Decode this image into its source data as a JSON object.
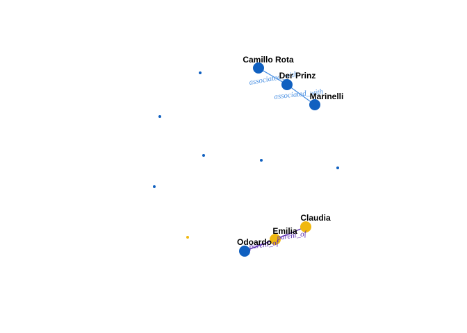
{
  "graph": {
    "colors": {
      "blue": "#1060c0",
      "yellow": "#f0b810",
      "edge_blue": "#4a90e2",
      "edge_purple": "#5a2cb0"
    },
    "nodes": [
      {
        "id": "camillo",
        "label": "Camillo Rota",
        "color": "blue",
        "size": "large"
      },
      {
        "id": "prinz",
        "label": "Der Prinz",
        "color": "blue",
        "size": "large"
      },
      {
        "id": "marinelli",
        "label": "Marinelli",
        "color": "blue",
        "size": "large"
      },
      {
        "id": "claudia",
        "label": "Claudia",
        "color": "yellow",
        "size": "large"
      },
      {
        "id": "emilia",
        "label": "Emilia",
        "color": "yellow",
        "size": "large"
      },
      {
        "id": "odoardo",
        "label": "Odoardo",
        "color": "blue",
        "size": "large"
      },
      {
        "id": "iso1",
        "label": "",
        "color": "blue",
        "size": "small"
      },
      {
        "id": "iso2",
        "label": "",
        "color": "blue",
        "size": "small"
      },
      {
        "id": "iso3",
        "label": "",
        "color": "blue",
        "size": "small"
      },
      {
        "id": "iso4",
        "label": "",
        "color": "blue",
        "size": "small"
      },
      {
        "id": "iso5",
        "label": "",
        "color": "blue",
        "size": "small"
      },
      {
        "id": "iso6",
        "label": "",
        "color": "blue",
        "size": "small"
      },
      {
        "id": "iso7",
        "label": "",
        "color": "yellow",
        "size": "small"
      }
    ],
    "edges": [
      {
        "source": "camillo",
        "target": "prinz",
        "label": "associated_with",
        "color": "edge_blue"
      },
      {
        "source": "prinz",
        "target": "marinelli",
        "label": "associated_with",
        "color": "edge_blue"
      },
      {
        "source": "claudia",
        "target": "emilia",
        "label": "parent_of",
        "color": "edge_purple"
      },
      {
        "source": "odoardo",
        "target": "emilia",
        "label": "parent_of",
        "color": "edge_purple"
      }
    ]
  }
}
